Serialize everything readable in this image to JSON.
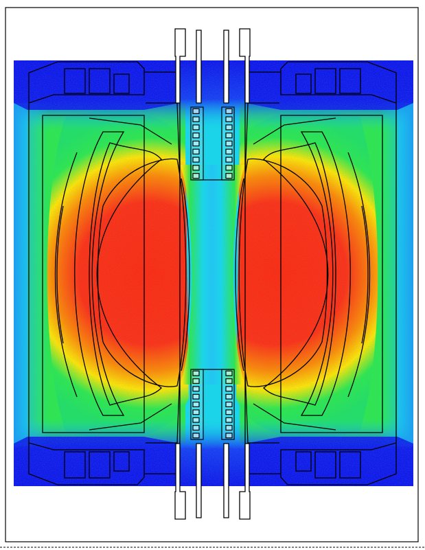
{
  "figure": {
    "description_visible_text": "",
    "colormap": {
      "low": "#1018e6",
      "low_mid": "#18d8e8",
      "mid": "#2ee84a",
      "mid_high": "#ffe600",
      "high_mid": "#ff8a00",
      "high": "#ff2a0a"
    },
    "outline_color": "#000000",
    "background_color": "#ffffff"
  }
}
